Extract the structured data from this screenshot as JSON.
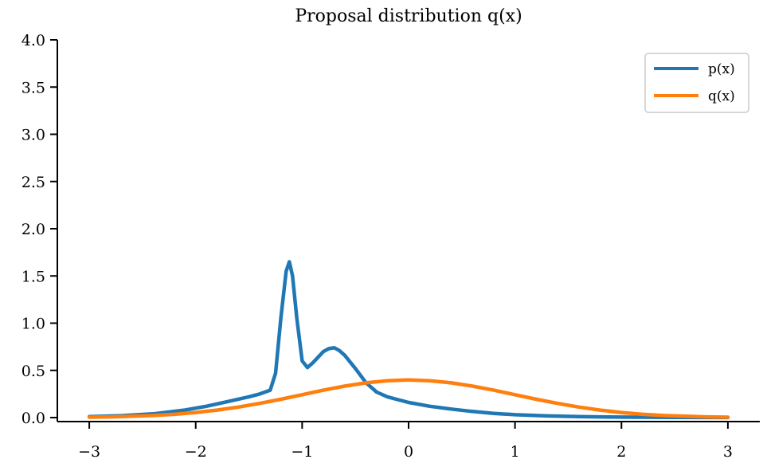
{
  "chart_data": {
    "type": "line",
    "title": "Proposal distribution q(x)",
    "xlabel": "",
    "ylabel": "",
    "xlim": [
      -3.3,
      3.3
    ],
    "ylim": [
      0,
      4.0
    ],
    "xticks": [
      -3,
      -2,
      -1,
      0,
      1,
      2,
      3
    ],
    "xtick_labels": [
      "−3",
      "−2",
      "−1",
      "0",
      "1",
      "2",
      "3"
    ],
    "yticks": [
      0.0,
      0.5,
      1.0,
      1.5,
      2.0,
      2.5,
      3.0,
      3.5,
      4.0
    ],
    "ytick_labels": [
      "0.0",
      "0.5",
      "1.0",
      "1.5",
      "2.0",
      "2.5",
      "3.0",
      "3.5",
      "4.0"
    ],
    "grid": false,
    "legend_position": "top-right",
    "series": [
      {
        "name": "p(x)",
        "color": "#1f77b4",
        "x": [
          -3.0,
          -2.7,
          -2.4,
          -2.1,
          -1.9,
          -1.7,
          -1.5,
          -1.4,
          -1.3,
          -1.25,
          -1.2,
          -1.15,
          -1.12,
          -1.09,
          -1.05,
          -1.0,
          -0.95,
          -0.9,
          -0.85,
          -0.8,
          -0.75,
          -0.7,
          -0.65,
          -0.6,
          -0.5,
          -0.4,
          -0.3,
          -0.2,
          -0.1,
          0.0,
          0.2,
          0.4,
          0.6,
          0.8,
          1.0,
          1.3,
          1.6,
          2.0,
          2.5,
          3.0
        ],
        "y": [
          0.01,
          0.02,
          0.04,
          0.08,
          0.12,
          0.17,
          0.22,
          0.25,
          0.29,
          0.47,
          1.05,
          1.55,
          1.65,
          1.5,
          1.05,
          0.6,
          0.53,
          0.58,
          0.64,
          0.7,
          0.73,
          0.74,
          0.71,
          0.66,
          0.52,
          0.37,
          0.27,
          0.22,
          0.19,
          0.16,
          0.12,
          0.09,
          0.065,
          0.045,
          0.03,
          0.018,
          0.01,
          0.005,
          0.002,
          0.001
        ]
      },
      {
        "name": "q(x)",
        "color": "#ff7f0e",
        "x": [
          -3.0,
          -2.8,
          -2.6,
          -2.4,
          -2.2,
          -2.0,
          -1.8,
          -1.6,
          -1.4,
          -1.2,
          -1.0,
          -0.8,
          -0.6,
          -0.4,
          -0.2,
          0.0,
          0.2,
          0.4,
          0.6,
          0.8,
          1.0,
          1.2,
          1.4,
          1.6,
          1.8,
          2.0,
          2.2,
          2.4,
          2.6,
          2.8,
          3.0
        ],
        "y": [
          0.004,
          0.008,
          0.014,
          0.022,
          0.035,
          0.054,
          0.079,
          0.111,
          0.15,
          0.194,
          0.242,
          0.29,
          0.333,
          0.368,
          0.391,
          0.399,
          0.391,
          0.368,
          0.333,
          0.29,
          0.242,
          0.194,
          0.15,
          0.111,
          0.079,
          0.054,
          0.035,
          0.022,
          0.014,
          0.008,
          0.004
        ]
      }
    ]
  }
}
